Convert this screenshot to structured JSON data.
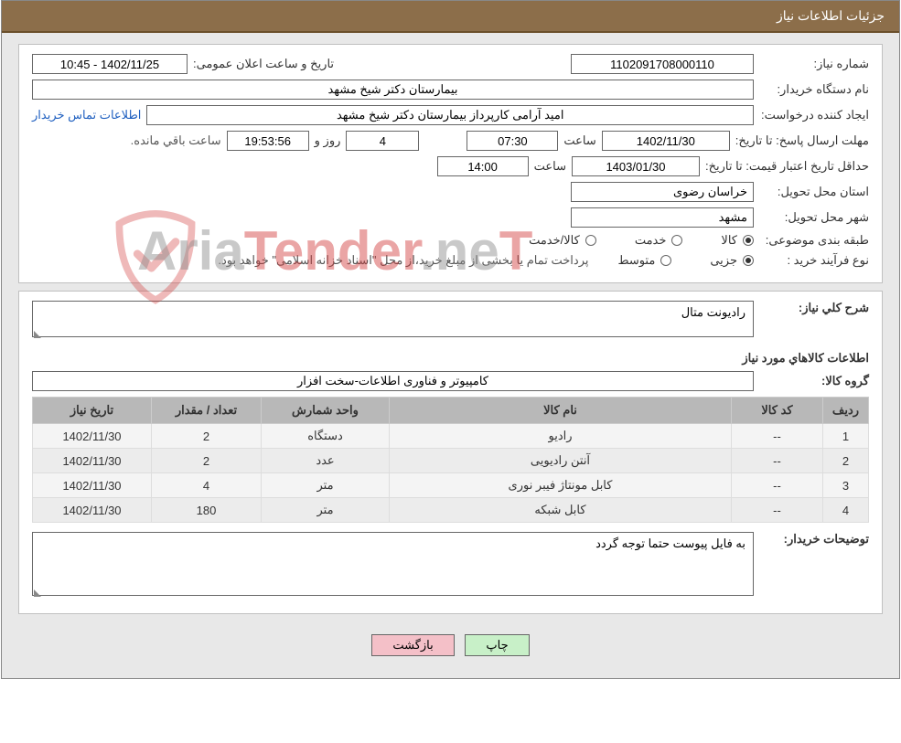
{
  "title_bar": "جزئیات اطلاعات نیاز",
  "fields": {
    "need_no_label": "شماره نیاز:",
    "need_no": "1102091708000110",
    "announce_label": "تاریخ و ساعت اعلان عمومی:",
    "announce_value": "1402/11/25 - 10:45",
    "buyer_org_label": "نام دستگاه خریدار:",
    "buyer_org": "بیمارستان دکتر شیخ مشهد",
    "requester_label": "ایجاد کننده درخواست:",
    "requester": "امید آرامی کارپرداز بیمارستان دکتر شیخ مشهد",
    "buyer_contact_link": "اطلاعات تماس خریدار",
    "reply_deadline_label": "مهلت ارسال پاسخ: تا تاریخ:",
    "reply_date": "1402/11/30",
    "time_label": "ساعت",
    "reply_time": "07:30",
    "days_val": "4",
    "days_label": "روز و",
    "countdown": "19:53:56",
    "remaining_label": "ساعت باقي مانده.",
    "min_validity_label": "حداقل تاریخ اعتبار قیمت: تا تاریخ:",
    "validity_date": "1403/01/30",
    "validity_time": "14:00",
    "province_label": "استان محل تحویل:",
    "province": "خراسان رضوی",
    "city_label": "شهر محل تحویل:",
    "city": "مشهد",
    "category_label": "طبقه بندی موضوعی:",
    "radio_goods": "کالا",
    "radio_service": "خدمت",
    "radio_both": "کالا/خدمت",
    "purchase_type_label": "نوع فرآیند خرید :",
    "radio_minor": "جزیی",
    "radio_medium": "متوسط",
    "purchase_note": "پرداخت تمام یا بخشی از مبلغ خرید،از محل \"اسناد خزانه اسلامی\" خواهد بود."
  },
  "need": {
    "desc_label": "شرح کلي نياز:",
    "desc": "رادیونت متال",
    "goods_info_header": "اطلاعات کالاهاي مورد نياز",
    "group_label": "گروه کالا:",
    "group": "کامپیوتر و فناوری اطلاعات-سخت افزار"
  },
  "table": {
    "headers": {
      "row": "ردیف",
      "code": "کد کالا",
      "name": "نام کالا",
      "unit": "واحد شمارش",
      "qty": "تعداد / مقدار",
      "date": "تاریخ نیاز"
    },
    "rows": [
      {
        "n": "1",
        "code": "--",
        "name": "رادیو",
        "unit": "دستگاه",
        "qty": "2",
        "date": "1402/11/30"
      },
      {
        "n": "2",
        "code": "--",
        "name": "آنتن رادیویی",
        "unit": "عدد",
        "qty": "2",
        "date": "1402/11/30"
      },
      {
        "n": "3",
        "code": "--",
        "name": "کابل مونتاژ فیبر نوری",
        "unit": "متر",
        "qty": "4",
        "date": "1402/11/30"
      },
      {
        "n": "4",
        "code": "--",
        "name": "کابل شبکه",
        "unit": "متر",
        "qty": "180",
        "date": "1402/11/30"
      }
    ]
  },
  "buyer_notes_label": "توضیحات خریدار:",
  "buyer_notes": "به فایل پیوست حتما توجه گردد",
  "buttons": {
    "print": "چاپ",
    "back": "بازگشت"
  },
  "watermark": {
    "p1": "Aria",
    "p2": "Tender",
    "p3": ".ne",
    "p4": "T"
  },
  "colors": {
    "title_bg": "#8c6e4a",
    "content_bg": "#e8e8e8",
    "panel_bg": "#ffffff",
    "th_bg": "#b8b8b8",
    "link": "#2060c0",
    "btn_print": "#c8f0c8",
    "btn_back": "#f4c0c8"
  }
}
